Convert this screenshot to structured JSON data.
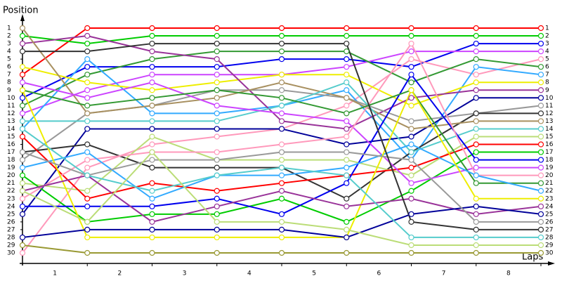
{
  "chart_data": {
    "type": "line",
    "y_label": "Position",
    "x_label": "Laps",
    "x": [
      0,
      1,
      2,
      3,
      4,
      5,
      6,
      7,
      8
    ],
    "xlim": [
      0,
      8
    ],
    "xticks": [
      1,
      2,
      3,
      4,
      5,
      6,
      7,
      8
    ],
    "ylim": [
      1,
      30
    ],
    "y_inverted": true,
    "yticks": [
      1,
      2,
      3,
      4,
      5,
      6,
      7,
      8,
      9,
      10,
      11,
      12,
      13,
      14,
      15,
      16,
      17,
      18,
      19,
      20,
      21,
      22,
      23,
      24,
      25,
      26,
      27,
      28,
      29,
      30
    ],
    "series": [
      {
        "color": "#ff0000",
        "values": [
          7,
          1,
          1,
          1,
          1,
          1,
          1,
          1,
          1
        ]
      },
      {
        "color": "#00cc00",
        "values": [
          2,
          3,
          2,
          2,
          2,
          2,
          2,
          2,
          2
        ]
      },
      {
        "color": "#0000ee",
        "values": [
          10,
          6,
          6,
          6,
          5,
          5,
          6,
          3,
          3
        ]
      },
      {
        "color": "#cc44ff",
        "values": [
          12,
          9,
          7,
          7,
          7,
          6,
          4,
          4,
          4
        ]
      },
      {
        "color": "#ff99bb",
        "values": [
          30,
          19,
          16,
          15,
          14,
          11,
          5,
          7,
          5
        ]
      },
      {
        "color": "#339933",
        "values": [
          11,
          7,
          5,
          4,
          4,
          4,
          8,
          5,
          6
        ]
      },
      {
        "color": "#33aaff",
        "values": [
          14,
          5,
          12,
          12,
          11,
          9,
          18,
          6,
          7
        ]
      },
      {
        "color": "#eeee00",
        "values": [
          6,
          8,
          9,
          8,
          7,
          7,
          11,
          8,
          8
        ]
      },
      {
        "color": "#993399",
        "values": [
          3,
          2,
          4,
          5,
          13,
          14,
          10,
          9,
          9
        ]
      },
      {
        "color": "#000099",
        "values": [
          25,
          14,
          14,
          14,
          14,
          16,
          15,
          10,
          10
        ]
      },
      {
        "color": "#999999",
        "values": [
          18,
          12,
          11,
          9,
          9,
          10,
          13,
          12,
          11
        ]
      },
      {
        "color": "#333333",
        "values": [
          17,
          16,
          19,
          19,
          19,
          23,
          17,
          12,
          12
        ]
      },
      {
        "color": "#a89060",
        "values": [
          1,
          12,
          11,
          10,
          8,
          10,
          14,
          13,
          13
        ]
      },
      {
        "color": "#55cccc",
        "values": [
          13,
          13,
          13,
          13,
          11,
          8,
          17,
          14,
          14
        ]
      },
      {
        "color": "#bbdd77",
        "values": [
          21,
          22,
          15,
          18,
          18,
          18,
          20,
          15,
          15
        ]
      },
      {
        "color": "#ff0000",
        "values": [
          15,
          23,
          21,
          22,
          21,
          20,
          19,
          16,
          16
        ]
      },
      {
        "color": "#00cc00",
        "values": [
          20,
          26,
          25,
          25,
          23,
          26,
          22,
          17,
          17
        ]
      },
      {
        "color": "#0000ee",
        "values": [
          24,
          24,
          24,
          23,
          25,
          21,
          7,
          18,
          18
        ]
      },
      {
        "color": "#cc44ff",
        "values": [
          8,
          10,
          8,
          11,
          12,
          13,
          21,
          19,
          19
        ]
      },
      {
        "color": "#ff99bb",
        "values": [
          23,
          18,
          17,
          17,
          16,
          15,
          3,
          20,
          20
        ]
      },
      {
        "color": "#339933",
        "values": [
          9,
          11,
          10,
          9,
          10,
          12,
          9,
          21,
          21
        ]
      },
      {
        "color": "#33aaff",
        "values": [
          19,
          17,
          23,
          20,
          20,
          19,
          16,
          20,
          22
        ]
      },
      {
        "color": "#eeee00",
        "values": [
          9,
          28,
          28,
          28,
          28,
          28,
          9,
          23,
          23
        ]
      },
      {
        "color": "#993399",
        "values": [
          22,
          20,
          26,
          24,
          22,
          24,
          23,
          25,
          24
        ]
      },
      {
        "color": "#000099",
        "values": [
          28,
          27,
          27,
          27,
          27,
          28,
          25,
          24,
          25
        ]
      },
      {
        "color": "#999999",
        "values": [
          17,
          20,
          18,
          18,
          17,
          17,
          18,
          26,
          26
        ]
      },
      {
        "color": "#333333",
        "values": [
          4,
          4,
          3,
          3,
          3,
          3,
          26,
          27,
          27
        ]
      },
      {
        "color": "#55cccc",
        "values": [
          14,
          20,
          22,
          20,
          19,
          20,
          28,
          28,
          28
        ]
      },
      {
        "color": "#bbdd77",
        "values": [
          22,
          26,
          17,
          26,
          26,
          27,
          29,
          29,
          29
        ]
      },
      {
        "color": "#999933",
        "values": [
          29,
          30,
          30,
          30,
          30,
          30,
          30,
          30,
          30
        ]
      }
    ]
  }
}
